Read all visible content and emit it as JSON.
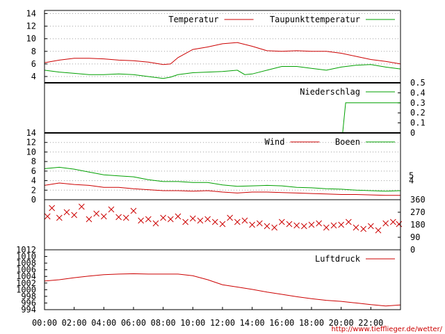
{
  "url": "http://www.tiefflieger.de/wetter/",
  "time_ticks": [
    "00:00",
    "02:00",
    "04:00",
    "06:00",
    "08:00",
    "10:00",
    "12:00",
    "14:00",
    "16:00",
    "18:00",
    "20:00",
    "22:00"
  ],
  "colors": {
    "red": "#cc0000",
    "green": "#00a000",
    "grid": "#a0a0a0",
    "axis": "#000000"
  },
  "chart_data": [
    {
      "type": "line",
      "panel": "temperature",
      "x_unit": "hour",
      "xlim": [
        0,
        24
      ],
      "ylim": [
        3,
        14.5
      ],
      "y_ticks": [
        "4",
        "6",
        "8",
        "10",
        "12",
        "14"
      ],
      "grid": true,
      "legend": "top-right",
      "series": [
        {
          "name": "Temperatur",
          "color": "#cc0000",
          "x": [
            0,
            1,
            2,
            3,
            4,
            5,
            6,
            7,
            7.5,
            8,
            8.5,
            9,
            10,
            11,
            12,
            13,
            14,
            15,
            16,
            17,
            18,
            19,
            20,
            21,
            22,
            23,
            24
          ],
          "values": [
            6.2,
            6.6,
            6.9,
            6.9,
            6.8,
            6.6,
            6.5,
            6.3,
            6.1,
            5.9,
            6.0,
            7.0,
            8.3,
            8.7,
            9.2,
            9.4,
            8.8,
            8.1,
            8.0,
            8.1,
            8.0,
            8.0,
            7.7,
            7.2,
            6.7,
            6.4,
            6.0
          ]
        },
        {
          "name": "Taupunkttemperatur",
          "color": "#00a000",
          "x": [
            0,
            1,
            2,
            3,
            4,
            5,
            6,
            7,
            8,
            8.5,
            9,
            10,
            11,
            12,
            13,
            13.5,
            14,
            15,
            16,
            17,
            18,
            19,
            20,
            21,
            22,
            23,
            24
          ],
          "values": [
            5.0,
            4.7,
            4.5,
            4.3,
            4.3,
            4.4,
            4.3,
            4.0,
            3.7,
            3.9,
            4.3,
            4.6,
            4.7,
            4.8,
            5.0,
            4.3,
            4.4,
            5.0,
            5.6,
            5.6,
            5.3,
            5.0,
            5.5,
            5.8,
            5.9,
            5.5,
            5.2
          ]
        }
      ]
    },
    {
      "type": "line",
      "panel": "precipitation",
      "xlim": [
        0,
        24
      ],
      "ylim": [
        0,
        0.5
      ],
      "y_ticks": [
        "0",
        "0.1",
        "0.2",
        "0.3",
        "0.4",
        "0.5"
      ],
      "grid": false,
      "legend": "top-right",
      "series": [
        {
          "name": "Niederschlag",
          "color": "#00a000",
          "x": [
            0,
            20.1,
            20.3,
            24
          ],
          "values": [
            0,
            0,
            0.3,
            0.3
          ]
        }
      ]
    },
    {
      "type": "line",
      "panel": "wind",
      "xlim": [
        0,
        24
      ],
      "ylim": [
        0,
        14
      ],
      "y_ticks": [
        "0",
        "2",
        "4",
        "6",
        "8",
        "10",
        "12",
        "14"
      ],
      "y2_ticks": [
        "4",
        "5"
      ],
      "grid": true,
      "legend": "top-right",
      "series": [
        {
          "name": "Wind",
          "color": "#cc0000",
          "x": [
            0,
            1,
            2,
            3,
            4,
            5,
            6,
            7,
            8,
            9,
            10,
            11,
            12,
            13,
            14,
            15,
            16,
            17,
            18,
            19,
            20,
            21,
            22,
            23,
            24
          ],
          "values": [
            3.0,
            3.5,
            3.2,
            3.0,
            2.6,
            2.6,
            2.3,
            2.1,
            1.9,
            1.9,
            1.8,
            1.9,
            1.6,
            1.4,
            1.6,
            1.6,
            1.5,
            1.4,
            1.3,
            1.2,
            1.1,
            1.1,
            1.0,
            0.9,
            0.9
          ]
        },
        {
          "name": "Boeen",
          "color": "#00a000",
          "x": [
            0,
            1,
            2,
            3,
            4,
            5,
            6,
            7,
            8,
            9,
            10,
            11,
            12,
            13,
            14,
            15,
            16,
            17,
            18,
            19,
            20,
            21,
            22,
            23,
            24
          ],
          "values": [
            6.5,
            6.8,
            6.4,
            5.8,
            5.2,
            5.0,
            4.8,
            4.2,
            3.8,
            3.8,
            3.6,
            3.6,
            3.1,
            2.8,
            2.9,
            3.0,
            2.9,
            2.6,
            2.5,
            2.3,
            2.2,
            2.0,
            1.9,
            1.8,
            1.9
          ]
        }
      ]
    },
    {
      "type": "scatter",
      "panel": "wind_direction",
      "xlim": [
        0,
        24
      ],
      "ylim": [
        0,
        360
      ],
      "y_ticks": [
        "0",
        "90",
        "180",
        "270",
        "360"
      ],
      "grid": false,
      "series": [
        {
          "name": "",
          "color": "#cc0000",
          "marker": "x",
          "x": [
            0.2,
            0.5,
            1.0,
            1.5,
            2.0,
            2.5,
            3.0,
            3.5,
            4.0,
            4.5,
            5.0,
            5.5,
            6.0,
            6.5,
            7.0,
            7.5,
            8.0,
            8.5,
            9.0,
            9.5,
            10.0,
            10.5,
            11.0,
            11.5,
            12.0,
            12.5,
            13.0,
            13.5,
            14.0,
            14.5,
            15.0,
            15.5,
            16.0,
            16.5,
            17.0,
            17.5,
            18.0,
            18.5,
            19.0,
            19.5,
            20.0,
            20.5,
            21.0,
            21.5,
            22.0,
            22.5,
            23.0,
            23.5,
            23.9
          ],
          "values": [
            240,
            300,
            230,
            270,
            250,
            310,
            220,
            260,
            240,
            290,
            235,
            230,
            280,
            210,
            220,
            190,
            230,
            220,
            240,
            200,
            225,
            210,
            220,
            200,
            185,
            230,
            200,
            210,
            180,
            190,
            170,
            160,
            200,
            185,
            175,
            170,
            180,
            190,
            160,
            175,
            180,
            200,
            160,
            150,
            170,
            140,
            190,
            200,
            185
          ]
        }
      ]
    },
    {
      "type": "line",
      "panel": "pressure",
      "xlim": [
        0,
        24
      ],
      "ylim": [
        994,
        1012
      ],
      "y_ticks": [
        "994",
        "996",
        "998",
        "1000",
        "1002",
        "1004",
        "1006",
        "1008",
        "1010",
        "1012"
      ],
      "grid": false,
      "legend": "top-right",
      "series": [
        {
          "name": "Luftdruck",
          "color": "#cc0000",
          "x": [
            0,
            1,
            2,
            3,
            4,
            5,
            6,
            7,
            8,
            9,
            10,
            11,
            12,
            13,
            14,
            15,
            16,
            17,
            18,
            19,
            20,
            21,
            22,
            23,
            24
          ],
          "values": [
            1002.6,
            1003.0,
            1003.6,
            1004.1,
            1004.5,
            1004.7,
            1004.8,
            1004.7,
            1004.7,
            1004.7,
            1004.2,
            1003.0,
            1001.5,
            1000.8,
            1000.1,
            999.3,
            998.6,
            997.9,
            997.3,
            996.8,
            996.5,
            996.0,
            995.5,
            995.1,
            995.4
          ]
        }
      ]
    }
  ]
}
